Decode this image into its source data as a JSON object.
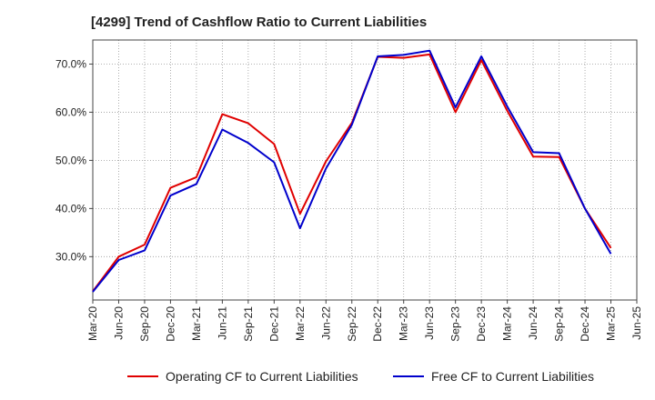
{
  "chart_data": {
    "type": "line",
    "title": "[4299]  Trend of Cashflow Ratio to Current Liabilities",
    "xlabel": "",
    "ylabel": "",
    "categories": [
      "Mar-20",
      "Jun-20",
      "Sep-20",
      "Dec-20",
      "Mar-21",
      "Jun-21",
      "Sep-21",
      "Dec-21",
      "Mar-22",
      "Jun-22",
      "Sep-22",
      "Dec-22",
      "Mar-23",
      "Jun-23",
      "Sep-23",
      "Dec-23",
      "Mar-24",
      "Jun-24",
      "Sep-24",
      "Dec-24",
      "Mar-25",
      "Jun-25"
    ],
    "y_ticks": [
      30,
      40,
      50,
      60,
      70
    ],
    "y_tick_labels": [
      "30.0%",
      "40.0%",
      "50.0%",
      "60.0%",
      "70.0%"
    ],
    "ylim": [
      21,
      75
    ],
    "grid": true,
    "legend_position": "bottom",
    "series": [
      {
        "name": "Operating CF to Current Liabilities",
        "color": "#e00000",
        "values": [
          22.8,
          30.0,
          32.5,
          44.3,
          46.5,
          59.6,
          57.7,
          53.4,
          38.9,
          49.8,
          57.8,
          71.5,
          71.3,
          72.0,
          60.0,
          70.8,
          60.3,
          50.8,
          50.7,
          40.0,
          31.8,
          null
        ]
      },
      {
        "name": "Free CF to Current Liabilities",
        "color": "#0000cc",
        "values": [
          22.7,
          29.3,
          31.3,
          42.7,
          45.1,
          56.4,
          53.6,
          49.6,
          35.9,
          48.3,
          57.4,
          71.6,
          71.9,
          72.8,
          61.0,
          71.6,
          61.2,
          51.7,
          51.5,
          40.0,
          30.6,
          null
        ]
      }
    ]
  }
}
